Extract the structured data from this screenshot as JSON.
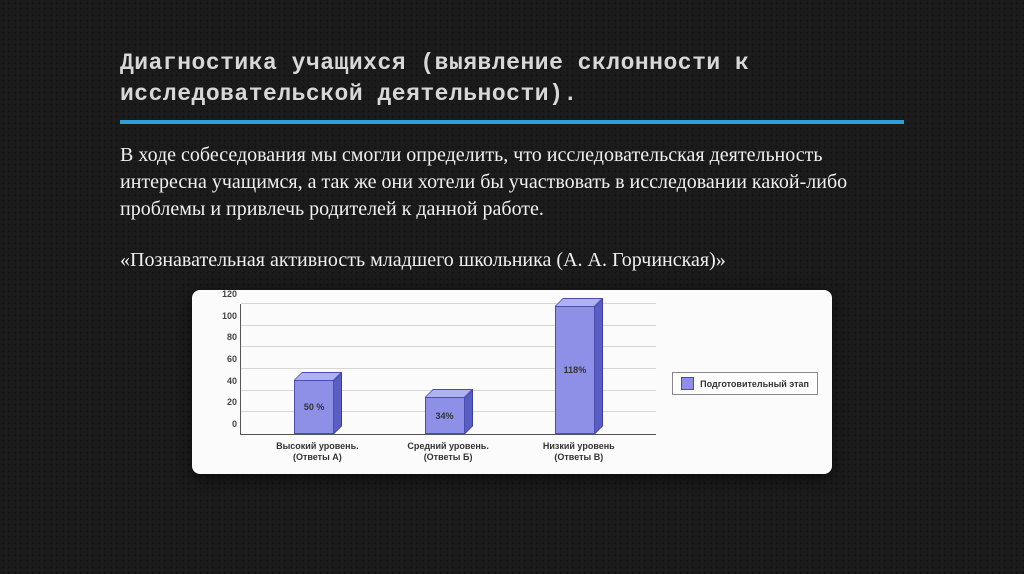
{
  "title": "Диагностика учащихся (выявление склонности к исследовательской деятельности).",
  "paragraph": "В ходе собеседования мы смогли определить, что исследовательская деятельность интересна учащимся, а так же они хотели бы участвовать в исследовании какой-либо проблемы и привлечь родителей к данной работе.",
  "caption": "«Познавательная активность младшего школьника (А. А. Горчинская)»",
  "accent_color": "#2aa0d8",
  "chart": {
    "type": "bar",
    "ylim": [
      0,
      120
    ],
    "ytick_step": 20,
    "yticks": [
      0,
      20,
      40,
      60,
      80,
      100,
      120
    ],
    "grid_color": "#d6d6d6",
    "axis_color": "#555555",
    "background_color": "#fbfbfb",
    "bar_front_color": "#8d90e6",
    "bar_side_color": "#5a5dc4",
    "bar_top_color": "#aeb1f2",
    "bar_border_color": "#4a4db0",
    "tick_fontsize": 9,
    "label_fontsize": 9,
    "categories": [
      {
        "label_line1": "Высокий уровень.",
        "label_line2": "(Ответы А)",
        "value": 50,
        "value_label": "50 %"
      },
      {
        "label_line1": "Средний уровень.",
        "label_line2": "(Ответы Б)",
        "value": 34,
        "value_label": "34%"
      },
      {
        "label_line1": "Низкий уровень",
        "label_line2": "(Ответы В)",
        "value": 118,
        "value_label": "118%"
      }
    ],
    "legend": {
      "label": "Подготовительный этап",
      "swatch_color": "#8d90e6"
    }
  }
}
